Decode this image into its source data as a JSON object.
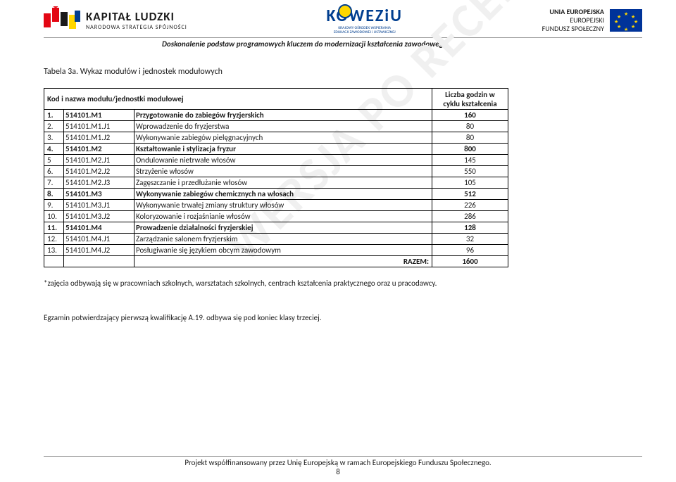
{
  "header": {
    "kl_title": "KAPITAŁ LUDZKI",
    "kl_sub": "NARODOWA STRATEGIA SPÓJNOŚCI",
    "koweziu": "KOWEZiU",
    "koweziu_sub1": "KRAJOWY OŚRODEK WSPIERANIA",
    "koweziu_sub2": "EDUKACJI ZAWODOWEJ i USTAWICZNEJ",
    "eu_line1": "UNIA EUROPEJSKA",
    "eu_line2": "EUROPEJSKI",
    "eu_line3": "FUNDUSZ SPOŁECZNY"
  },
  "subtitle": "Doskonalenie podstaw programowych kluczem do modernizacji kształcenia zawodowego",
  "watermark": "WERSJA PO RECENZJACH",
  "table_title": "Tabela 3a. Wykaz modułów i jednostek modułowych",
  "columns": {
    "col1": "Kod i nazwa modułu/jednostki modułowej",
    "col2_line1": "Liczba godzin w",
    "col2_line2": "cyklu kształcenia"
  },
  "rows": [
    {
      "num": "1.",
      "code": "514101.M1",
      "desc": "Przygotowanie do zabiegów fryzjerskich",
      "val": "160",
      "bold": true
    },
    {
      "num": "2.",
      "code": "514101.M1.J1",
      "desc": "Wprowadzenie do fryzjerstwa",
      "val": "80",
      "bold": false
    },
    {
      "num": "3.",
      "code": "514101.M1.J2",
      "desc": "Wykonywanie zabiegów pielęgnacyjnych",
      "val": "80",
      "bold": false
    },
    {
      "num": "4.",
      "code": "514101.M2",
      "desc": "Kształtowanie i stylizacja fryzur",
      "val": "800",
      "bold": true
    },
    {
      "num": "5",
      "code": "514101.M2.J1",
      "desc": "Ondulowanie nietrwałe włosów",
      "val": "145",
      "bold": false
    },
    {
      "num": "6.",
      "code": "514101.M2.J2",
      "desc": "Strzyżenie włosów",
      "val": "550",
      "bold": false
    },
    {
      "num": "7.",
      "code": "514101.M2.J3",
      "desc": "Zagęszczanie i przedłużanie włosów",
      "val": "105",
      "bold": false
    },
    {
      "num": "8.",
      "code": "514101.M3",
      "desc": "Wykonywanie zabiegów chemicznych na włosach",
      "val": "512",
      "bold": true
    },
    {
      "num": "9.",
      "code": "514101.M3.J1",
      "desc": "Wykonywanie trwałej zmiany struktury włosów",
      "val": "226",
      "bold": false
    },
    {
      "num": "10.",
      "code": "514101.M3.J2",
      "desc": "Koloryzowanie i rozjaśnianie włosów",
      "val": "286",
      "bold": false
    },
    {
      "num": "11.",
      "code": "514101.M4",
      "desc": "Prowadzenie działalności fryzjerskiej",
      "val": "128",
      "bold": true
    },
    {
      "num": "12.",
      "code": "514101.M4.J1",
      "desc": "Zarządzanie salonem fryzjerskim",
      "val": "32",
      "bold": false
    },
    {
      "num": "13.",
      "code": "514101.M4.J2",
      "desc": "Posługiwanie się językiem obcym zawodowym",
      "val": "96",
      "bold": false
    }
  ],
  "razem": {
    "label": "RAZEM:",
    "val": "1600"
  },
  "note": "*zajęcia odbywają się w pracowniach szkolnych, warsztatach szkolnych, centrach kształcenia praktycznego oraz u pracodawcy.",
  "note2": "Egzamin potwierdzający pierwszą kwalifikację A.19. odbywa się pod koniec klasy trzeciej.",
  "footer": "Projekt współfinansowany przez Unię Europejską w ramach Europejskiego Funduszu Społecznego.",
  "page": "8",
  "colors": {
    "border": "#000000",
    "text": "#1a1a1a",
    "watermark": "#f0f0f0",
    "eu_blue": "#003399",
    "eu_gold": "#ffd700",
    "kow_blue": "#003e8f"
  }
}
